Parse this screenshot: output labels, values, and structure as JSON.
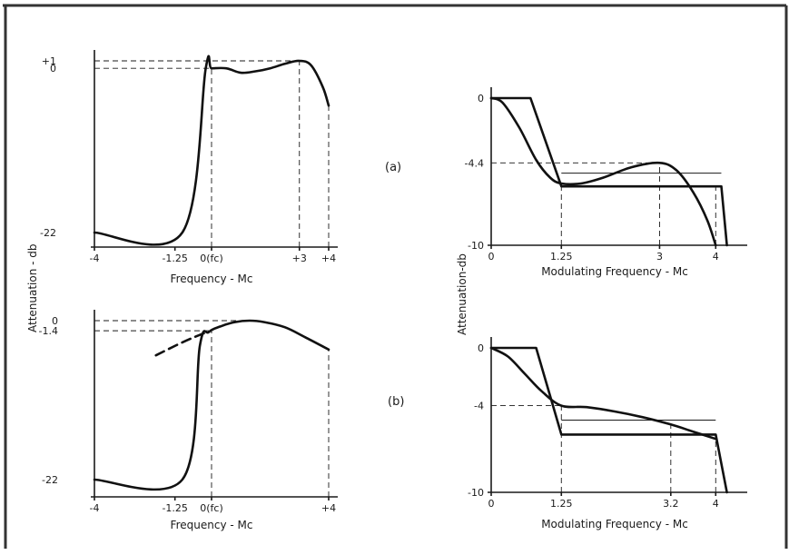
{
  "figure": {
    "panel_labels": [
      "(a)",
      "(b)"
    ],
    "shared_ylabel_left": "Attenuation - db",
    "shared_ylabel_right": "Attenuation-db"
  },
  "chart_data": [
    {
      "id": "a-left",
      "type": "line",
      "xlabel": "Frequency - Mc",
      "xlim": [
        -4,
        4
      ],
      "ylim": [
        -22,
        1
      ],
      "x_ticks": [
        -4,
        -1.25,
        0,
        3,
        4
      ],
      "x_tick_labels": [
        "-4",
        "-1.25",
        "0(fc)",
        "+3",
        "+4"
      ],
      "y_ticks": [
        -22,
        0,
        1
      ],
      "y_tick_labels": [
        "-22",
        "0",
        "+1"
      ],
      "grid": false,
      "series": [
        {
          "style": "solid",
          "x": [
            -4,
            -1.0,
            -0.2,
            0,
            0.5,
            1.0,
            1.5,
            2.0,
            2.5,
            3.0,
            3.4,
            3.8,
            4.0
          ],
          "y": [
            -22,
            -22,
            0,
            0,
            0,
            -0.6,
            -0.4,
            0,
            0.6,
            1,
            0.4,
            -2.5,
            -5
          ]
        }
      ],
      "reference_lines": [
        {
          "style": "dashed",
          "kind": "h",
          "y": 1,
          "x": [
            -4,
            3
          ]
        },
        {
          "style": "dashed",
          "kind": "h",
          "y": 0,
          "x": [
            -4,
            0
          ]
        },
        {
          "style": "dashed",
          "kind": "v",
          "x": 0,
          "y": [
            -22,
            0
          ]
        },
        {
          "style": "dashed",
          "kind": "v",
          "x": 3,
          "y": [
            -22,
            1
          ]
        },
        {
          "style": "dashed",
          "kind": "v",
          "x": 4,
          "y": [
            -22,
            -5
          ]
        }
      ]
    },
    {
      "id": "a-right",
      "type": "line",
      "xlabel": "Modulating Frequency - Mc",
      "xlim": [
        0,
        4.4
      ],
      "ylim": [
        -10,
        0
      ],
      "x_ticks": [
        0,
        1.25,
        3,
        4
      ],
      "x_tick_labels": [
        "0",
        "1.25",
        "3",
        "4"
      ],
      "y_ticks": [
        -10,
        -4.4,
        0
      ],
      "y_tick_labels": [
        "-10",
        "-4.4",
        "0"
      ],
      "grid": false,
      "series": [
        {
          "style": "solid",
          "x": [
            0,
            0.7,
            1.25,
            4.1,
            4.2
          ],
          "y": [
            0,
            0,
            -6.0,
            -6.0,
            -10
          ]
        },
        {
          "style": "solid",
          "x": [
            0,
            0.2,
            0.5,
            0.8,
            1.05,
            1.25,
            1.6,
            2.0,
            2.5,
            3.0,
            3.3,
            3.6,
            3.85,
            4.0
          ],
          "y": [
            0,
            -0.3,
            -2.0,
            -4.2,
            -5.4,
            -5.8,
            -5.8,
            -5.4,
            -4.7,
            -4.4,
            -4.9,
            -6.4,
            -8.3,
            -10
          ]
        }
      ],
      "reference_lines": [
        {
          "style": "dashed",
          "kind": "h",
          "y": -4.4,
          "x": [
            0,
            3
          ]
        },
        {
          "style": "dashed",
          "kind": "v",
          "x": 1.25,
          "y": [
            -10,
            -6.0
          ]
        },
        {
          "style": "dashed",
          "kind": "v",
          "x": 3,
          "y": [
            -10,
            -4.4
          ]
        },
        {
          "style": "dashed",
          "kind": "v",
          "x": 4,
          "y": [
            -10,
            -6.0
          ]
        },
        {
          "style": "solid-thin",
          "kind": "h",
          "y": -5.1,
          "x": [
            1.25,
            4.1
          ]
        }
      ]
    },
    {
      "id": "b-left",
      "type": "line",
      "xlabel": "Frequency - Mc",
      "xlim": [
        -4,
        4
      ],
      "ylim": [
        -22,
        0
      ],
      "x_ticks": [
        -4,
        -1.25,
        0,
        4
      ],
      "x_tick_labels": [
        "-4",
        "-1.25",
        "0(fc)",
        "+4"
      ],
      "y_ticks": [
        -22,
        -1.4,
        0
      ],
      "y_tick_labels": [
        "-22",
        "-1.4",
        "0"
      ],
      "grid": false,
      "series": [
        {
          "style": "solid",
          "x": [
            -4,
            -1.0,
            -0.4,
            -0.1,
            0.3,
            0.8,
            1.3,
            1.8,
            2.5,
            3.2,
            4.0
          ],
          "y": [
            -22,
            -22,
            -3.5,
            -1.6,
            -0.8,
            -0.2,
            0,
            -0.2,
            -0.9,
            -2.3,
            -4.0
          ]
        },
        {
          "style": "dashed-thick",
          "x": [
            -1.9,
            -1.2,
            -0.6,
            -0.1
          ],
          "y": [
            -4.8,
            -3.4,
            -2.3,
            -1.5
          ]
        }
      ],
      "reference_lines": [
        {
          "style": "dashed",
          "kind": "h",
          "y": 0,
          "x": [
            -4,
            1.3
          ]
        },
        {
          "style": "dashed",
          "kind": "h",
          "y": -1.4,
          "x": [
            -4,
            0
          ]
        },
        {
          "style": "dashed",
          "kind": "v",
          "x": 0,
          "y": [
            -22,
            -1.4
          ]
        },
        {
          "style": "dashed",
          "kind": "v",
          "x": 4,
          "y": [
            -22,
            -4.0
          ]
        }
      ]
    },
    {
      "id": "b-right",
      "type": "line",
      "xlabel": "Modulating Frequency - Mc",
      "xlim": [
        0,
        4.4
      ],
      "ylim": [
        -10,
        0
      ],
      "x_ticks": [
        0,
        1.25,
        3.2,
        4
      ],
      "x_tick_labels": [
        "0",
        "1.25",
        "3.2",
        "4"
      ],
      "y_ticks": [
        -10,
        -4,
        0
      ],
      "y_tick_labels": [
        "-10",
        "-4",
        "0"
      ],
      "grid": false,
      "series": [
        {
          "style": "solid",
          "x": [
            0,
            0.8,
            1.25,
            4.0,
            4.2
          ],
          "y": [
            0,
            0,
            -6.0,
            -6.0,
            -10
          ]
        },
        {
          "style": "solid",
          "x": [
            0,
            0.3,
            0.6,
            0.9,
            1.25,
            1.7,
            2.2,
            2.7,
            3.2,
            3.6,
            4.0
          ],
          "y": [
            0,
            -0.6,
            -1.8,
            -3.0,
            -4.0,
            -4.1,
            -4.4,
            -4.8,
            -5.3,
            -5.8,
            -6.3
          ]
        }
      ],
      "reference_lines": [
        {
          "style": "dashed",
          "kind": "h",
          "y": -4,
          "x": [
            0,
            1.25
          ]
        },
        {
          "style": "dashed",
          "kind": "v",
          "x": 1.25,
          "y": [
            -10,
            -4.0
          ]
        },
        {
          "style": "dashed",
          "kind": "v",
          "x": 3.2,
          "y": [
            -10,
            -5.3
          ]
        },
        {
          "style": "dashed",
          "kind": "v",
          "x": 4,
          "y": [
            -10,
            -6.0
          ]
        },
        {
          "style": "solid-thin",
          "kind": "h",
          "y": -5.0,
          "x": [
            1.25,
            4.0
          ]
        }
      ]
    }
  ]
}
